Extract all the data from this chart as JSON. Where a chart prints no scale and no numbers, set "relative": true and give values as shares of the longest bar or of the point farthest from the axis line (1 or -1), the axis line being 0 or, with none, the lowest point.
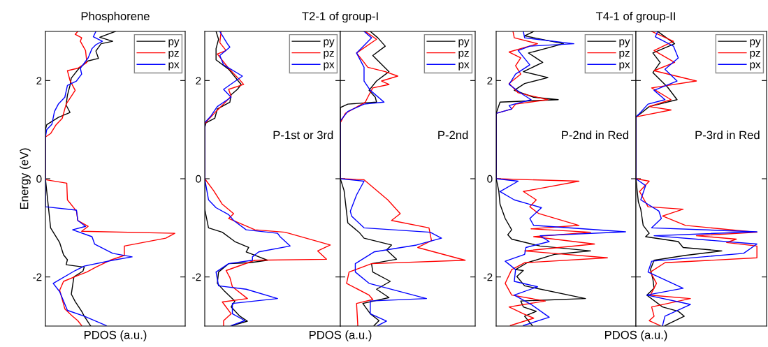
{
  "chart_data": [
    {
      "type": "line",
      "orientation": "horizontal",
      "relative": true,
      "title": "Phosphorene",
      "xlabel": "PDOS (a.u.)",
      "ylabel": "Energy (eV)",
      "ylim": [
        -3,
        3
      ],
      "yticks": [
        -2,
        0,
        2
      ],
      "tick_labels": "y",
      "legend": "top right",
      "series": [
        {
          "name": "py",
          "color": "#000000",
          "x": [
            3.0,
            2.88,
            2.8,
            2.75,
            2.6,
            2.45,
            2.4,
            2.25,
            2.05,
            1.9,
            1.7,
            1.5,
            1.35,
            1.25,
            1.1,
            1.0,
            0,
            -0.5,
            -1.0,
            -1.3,
            -1.55,
            -1.65,
            -1.75,
            -1.8,
            -1.88,
            -2.0,
            -2.35,
            -2.5,
            -2.7,
            -2.8,
            -3.0
          ],
          "values": [
            0.54,
            0.42,
            0.52,
            0.43,
            0.39,
            0.41,
            0.33,
            0.26,
            0.2,
            0.19,
            0.17,
            0.16,
            0.19,
            0.1,
            0.01,
            0,
            0,
            0.02,
            0.04,
            0.11,
            0.14,
            0.17,
            0.16,
            0.3,
            0.29,
            0.22,
            0.2,
            0.23,
            0.28,
            0.3,
            0.35
          ]
        },
        {
          "name": "pz",
          "color": "#ff0000",
          "x": [
            3.0,
            2.94,
            2.87,
            2.8,
            2.61,
            2.37,
            2.25,
            2.2,
            2.0,
            1.8,
            1.52,
            1.23,
            1.09,
            0.92,
            0.85,
            0,
            -0.02,
            -0.09,
            -0.43,
            -0.66,
            -0.85,
            -0.97,
            -1.07,
            -1.11,
            -1.21,
            -1.37,
            -1.56,
            -1.66,
            -1.8,
            -1.9,
            -1.97,
            -2.09,
            -2.27,
            -2.65,
            -2.8,
            -2.89,
            -2.99
          ],
          "values": [
            0.25,
            0.23,
            0.28,
            0.27,
            0.31,
            0.32,
            0.25,
            0.17,
            0.19,
            0.23,
            0.16,
            0.13,
            0.08,
            0.04,
            0,
            0,
            0,
            0.165,
            0.17,
            0.24,
            0.25,
            0.33,
            0.28,
            1.0,
            0.93,
            0.61,
            0.61,
            0.5,
            0.39,
            0.32,
            0.25,
            0.14,
            0.11,
            0.15,
            0.21,
            0.25,
            0.28
          ]
        },
        {
          "name": "px",
          "color": "#0000ff",
          "x": [
            3.0,
            2.89,
            2.8,
            2.73,
            2.65,
            2.46,
            2.25,
            2.13,
            1.99,
            1.9,
            1.66,
            1.52,
            1.37,
            1.11,
            1.0,
            0.85,
            0,
            -0.57,
            -0.64,
            -0.85,
            -0.97,
            -1.04,
            -1.18,
            -1.33,
            -1.52,
            -1.59,
            -1.66,
            -1.78,
            -1.87,
            -2.13,
            -2.3,
            -2.68,
            -2.8,
            -2.99
          ],
          "values": [
            0.39,
            0.37,
            0.44,
            0.39,
            0.36,
            0.33,
            0.27,
            0.28,
            0.24,
            0.17,
            0.15,
            0.1,
            0.07,
            0.05,
            0.01,
            0,
            0,
            0,
            0.24,
            0.25,
            0.31,
            0.21,
            0.36,
            0.38,
            0.52,
            0.67,
            0.52,
            0.3,
            0.23,
            0.06,
            0.11,
            0.17,
            0.3,
            0.47
          ]
        }
      ]
    },
    {
      "type": "line",
      "orientation": "horizontal",
      "relative": true,
      "title": "T2-1 of group-I",
      "xlabel": "PDOS (a.u.)",
      "ylim": [
        -3,
        3
      ],
      "yticks": [
        -2,
        0,
        2
      ],
      "tick_labels": "y",
      "legend": "top right",
      "annotations": [
        "P-1st or 3rd"
      ],
      "series": [
        {
          "name": "py",
          "color": "#000000",
          "x": [
            3.0,
            2.84,
            2.65,
            2.42,
            2.23,
            1.92,
            1.82,
            1.71,
            1.56,
            1.42,
            1.23,
            1.14,
            1.04,
            0,
            -0.62,
            -1.0,
            -1.09,
            -1.28,
            -1.4,
            -1.49,
            -1.56,
            -1.66,
            -1.71,
            -1.73,
            -1.9,
            -2.13,
            -2.27,
            -2.49,
            -2.61,
            -2.8,
            -2.9,
            -2.99
          ],
          "values": [
            0.09,
            0.11,
            0.09,
            0.09,
            0.19,
            0.29,
            0.26,
            0.21,
            0.2,
            0.1,
            0.08,
            0.01,
            0,
            0,
            0,
            0.03,
            0.14,
            0.24,
            0.35,
            0.33,
            0.4,
            0.5,
            0.36,
            0.19,
            0.11,
            0.1,
            0.15,
            0.24,
            0.21,
            0.28,
            0.34,
            0.22
          ]
        },
        {
          "name": "pz",
          "color": "#ff0000",
          "x": [
            3.0,
            2.77,
            2.61,
            2.54,
            2.25,
            2.01,
            1.92,
            1.82,
            1.68,
            1.52,
            1.37,
            1.18,
            1.11,
            0,
            -0.24,
            -0.52,
            -0.71,
            -0.81,
            -1.04,
            -1.09,
            -1.35,
            -1.47,
            -1.64,
            -1.66,
            -1.87,
            -2.01,
            -2.2,
            -2.44,
            -2.51,
            -2.75,
            -2.89,
            -2.99
          ],
          "values": [
            0.13,
            0.12,
            0.17,
            0.1,
            0.19,
            0.28,
            0.31,
            0.19,
            0.21,
            0.15,
            0.09,
            0.02,
            0,
            0,
            0.07,
            0.14,
            0.23,
            0.19,
            0.4,
            0.64,
            1.0,
            0.9,
            0.97,
            0.4,
            0.17,
            0.2,
            0.22,
            0.34,
            0.14,
            0.21,
            0.15,
            0.15
          ]
        },
        {
          "name": "px",
          "color": "#0000ff",
          "x": [
            3.0,
            2.75,
            2.68,
            2.51,
            2.32,
            2.09,
            1.82,
            1.66,
            1.47,
            1.28,
            1.14,
            0,
            -0.43,
            -0.59,
            -0.73,
            -0.85,
            -1.04,
            -1.11,
            -1.18,
            -1.37,
            -1.49,
            -1.59,
            -1.66,
            -1.73,
            -1.9,
            -2.18,
            -2.25,
            -2.44,
            -2.54,
            -2.75,
            -2.89,
            -2.99
          ],
          "values": [
            0.12,
            0.18,
            0.2,
            0.12,
            0.15,
            0.3,
            0.15,
            0.21,
            0.1,
            0.05,
            0,
            0,
            0.03,
            0.09,
            0.19,
            0.23,
            0.33,
            0.58,
            0.6,
            0.68,
            0.43,
            0.38,
            0.38,
            0.19,
            0.09,
            0.11,
            0.33,
            0.58,
            0.22,
            0.22,
            0.32,
            0.21
          ]
        }
      ]
    },
    {
      "type": "line",
      "orientation": "horizontal",
      "relative": true,
      "ylim": [
        -3,
        3
      ],
      "yticks": [
        -2,
        0,
        2
      ],
      "tick_labels": false,
      "legend": "top right",
      "annotations": [
        "P-2nd"
      ],
      "series": [
        {
          "name": "py",
          "color": "#000000",
          "x": [
            3.0,
            2.87,
            2.7,
            2.51,
            2.18,
            1.99,
            1.8,
            1.66,
            1.56,
            1.52,
            1.45,
            0,
            -0.24,
            -0.9,
            -1.09,
            -1.21,
            -1.35,
            -1.45,
            -1.64,
            -1.73,
            -1.9,
            -2.09,
            -2.25,
            -2.42,
            -2.54,
            -2.75,
            -2.89,
            -2.99
          ],
          "values": [
            0.24,
            0.3,
            0.36,
            0.26,
            0.39,
            0.29,
            0.23,
            0.28,
            0.29,
            0.06,
            0,
            0,
            0.03,
            0.06,
            0.15,
            0.19,
            0.41,
            0.37,
            0.45,
            0.25,
            0.26,
            0.4,
            0.29,
            0.39,
            0.18,
            0.24,
            0.31,
            0.27
          ]
        },
        {
          "name": "pz",
          "color": "#ff0000",
          "x": [
            3.0,
            2.84,
            2.56,
            2.37,
            2.27,
            2.18,
            2.09,
            1.99,
            1.92,
            1.85,
            1.71,
            1.56,
            1.33,
            1.14,
            0,
            -0.02,
            -0.43,
            -0.71,
            -0.85,
            -1.0,
            -1.26,
            -1.4,
            -1.66,
            -1.73,
            -1.9,
            -2.13,
            -2.37,
            -2.46,
            -2.54,
            -2.99
          ],
          "values": [
            0.2,
            0.29,
            0.13,
            0.19,
            0.22,
            0.36,
            0.46,
            0.33,
            0.39,
            0.26,
            0.23,
            0.2,
            0.04,
            0,
            0,
            0.19,
            0.38,
            0.48,
            0.41,
            0.71,
            0.73,
            0.62,
            1.0,
            0.25,
            0.07,
            0.05,
            0.23,
            0.26,
            0.13,
            0.14
          ]
        },
        {
          "name": "px",
          "color": "#0000ff",
          "x": [
            3.0,
            2.87,
            2.56,
            2.27,
            1.99,
            1.8,
            1.56,
            1.52,
            1.37,
            1.18,
            0,
            -0.05,
            -0.33,
            -0.66,
            -0.76,
            -1.0,
            -1.09,
            -1.21,
            -1.35,
            -1.49,
            -1.73,
            -1.9,
            -2.13,
            -2.44,
            -2.49,
            -2.75,
            -2.9,
            -2.99
          ],
          "values": [
            0.19,
            0.25,
            0.13,
            0.19,
            0.19,
            0.24,
            0.35,
            0.19,
            0.06,
            0,
            0,
            0.19,
            0.13,
            0.08,
            0.09,
            0.19,
            0.72,
            0.81,
            0.61,
            0.27,
            0.12,
            0.12,
            0.23,
            0.69,
            0.24,
            0.24,
            0.37,
            0.3
          ]
        }
      ]
    },
    {
      "type": "line",
      "orientation": "horizontal",
      "relative": true,
      "title": "T4-1 of group-II",
      "xlabel": "PDOS (a.u.)",
      "ylim": [
        -3,
        3
      ],
      "yticks": [
        -2,
        0,
        2
      ],
      "tick_labels": "y",
      "legend": "top right",
      "annotations": [
        "P-2nd in Red"
      ],
      "series": [
        {
          "name": "py",
          "color": "#000000",
          "x": [
            3.0,
            2.91,
            2.75,
            2.56,
            2.37,
            2.18,
            2.06,
            1.94,
            1.8,
            1.66,
            1.61,
            1.56,
            1.33,
            0,
            -0.24,
            -0.52,
            -0.81,
            -1.04,
            -1.14,
            -1.23,
            -1.37,
            -1.47,
            -1.54,
            -1.71,
            -1.85,
            -1.87,
            -1.99,
            -2.18,
            -2.44,
            -2.49,
            -2.61,
            -2.7,
            -2.8,
            -2.99
          ],
          "values": [
            0.29,
            0.22,
            0.52,
            0.25,
            0.36,
            0.21,
            0.4,
            0.22,
            0.14,
            0.29,
            0.48,
            0.03,
            0,
            0,
            0.02,
            0.03,
            0.07,
            0.12,
            0.09,
            0.12,
            0.34,
            0.73,
            0.45,
            0.24,
            0.15,
            0.21,
            0.16,
            0.22,
            0.69,
            0.19,
            0.21,
            0.31,
            0.22,
            0.28
          ]
        },
        {
          "name": "pz",
          "color": "#ff0000",
          "x": [
            3.0,
            2.87,
            2.75,
            2.58,
            2.46,
            2.3,
            2.13,
            1.94,
            1.75,
            1.61,
            1.52,
            1.42,
            1.33,
            0,
            -0.05,
            -0.26,
            -0.43,
            -0.57,
            -0.71,
            -0.95,
            -1.02,
            -1.09,
            -1.18,
            -1.33,
            -1.47,
            -1.61,
            -1.71,
            -1.85,
            -2.13,
            -2.37,
            -2.49,
            -2.61,
            -2.75,
            -2.84,
            -2.99
          ],
          "values": [
            0.13,
            0.14,
            0.32,
            0.1,
            0.19,
            0.15,
            0.19,
            0.1,
            0.17,
            0.4,
            0.15,
            0.12,
            0,
            0,
            0.64,
            0.21,
            0.31,
            0.26,
            0.33,
            0.64,
            0.27,
            0.73,
            0.29,
            0.76,
            0.22,
            0.86,
            0.22,
            0.12,
            0.07,
            0.12,
            0.38,
            0.1,
            0.21,
            0.29,
            0.11
          ]
        },
        {
          "name": "px",
          "color": "#0000ff",
          "x": [
            3.0,
            2.87,
            2.75,
            2.7,
            2.61,
            2.32,
            2.13,
            1.92,
            1.71,
            1.61,
            1.49,
            1.42,
            1.33,
            0,
            -0.05,
            -0.26,
            -0.43,
            -0.59,
            -0.81,
            -0.95,
            -1.08,
            -1.16,
            -1.28,
            -1.4,
            -1.54,
            -1.68,
            -1.85,
            -2.09,
            -2.2,
            -2.37,
            -2.56,
            -2.82,
            -2.99
          ],
          "values": [
            0.21,
            0.22,
            0.6,
            0.26,
            0.17,
            0.26,
            0.15,
            0.1,
            0.21,
            0.27,
            0.1,
            0.12,
            0,
            0,
            0.17,
            0.03,
            0.14,
            0.35,
            0.26,
            0.29,
            1.0,
            0.34,
            0.41,
            0.23,
            0.22,
            0.07,
            0.15,
            0.14,
            0.32,
            0.14,
            0.27,
            0.41,
            0.21
          ]
        }
      ]
    },
    {
      "type": "line",
      "orientation": "horizontal",
      "relative": true,
      "ylim": [
        -3,
        3
      ],
      "yticks": [
        -2,
        0,
        2
      ],
      "tick_labels": false,
      "legend": "top right",
      "annotations": [
        "P-3rd in Red"
      ],
      "series": [
        {
          "name": "py",
          "color": "#000000",
          "x": [
            3.0,
            2.75,
            2.56,
            2.37,
            2.16,
            1.87,
            1.61,
            1.47,
            1.33,
            1.26,
            0,
            -0.47,
            -0.62,
            -0.95,
            -1.11,
            -1.18,
            -1.28,
            -1.4,
            -1.47,
            -1.56,
            -1.66,
            -1.85,
            -2.04,
            -2.23,
            -2.37,
            -2.61,
            -2.7,
            -2.8,
            -2.99
          ],
          "values": [
            0.18,
            0.32,
            0.14,
            0.2,
            0.14,
            0.26,
            0.34,
            0.11,
            0.04,
            0,
            0,
            0.02,
            0.04,
            0.06,
            0.11,
            0.08,
            0.35,
            0.39,
            0.71,
            0.41,
            0.15,
            0.12,
            0.14,
            0.15,
            0.09,
            0.22,
            0.35,
            0.4,
            0.24
          ]
        },
        {
          "name": "pz",
          "color": "#ff0000",
          "x": [
            3.0,
            2.8,
            2.61,
            2.37,
            2.2,
            1.99,
            1.85,
            1.61,
            1.47,
            1.4,
            1.26,
            0,
            -0.05,
            -0.26,
            -0.57,
            -0.62,
            -0.76,
            -0.95,
            -1.09,
            -1.16,
            -1.23,
            -1.3,
            -1.37,
            -1.61,
            -1.71,
            -1.9,
            -2.13,
            -2.37,
            -2.44,
            -2.61,
            -2.8,
            -2.89,
            -2.99
          ],
          "values": [
            0.13,
            0.31,
            0.15,
            0.32,
            0.15,
            0.5,
            0.13,
            0.29,
            0.11,
            0.29,
            0,
            0,
            0.11,
            0.03,
            0.1,
            0.39,
            0.22,
            0.41,
            1.0,
            0.5,
            0.83,
            0.75,
            1.0,
            1.0,
            0.24,
            0.12,
            0.17,
            0.12,
            0.45,
            0.13,
            0.15,
            0.11,
            0.2
          ]
        },
        {
          "name": "px",
          "color": "#0000ff",
          "x": [
            3.0,
            2.89,
            2.7,
            2.46,
            2.23,
            1.99,
            1.8,
            1.61,
            1.52,
            1.33,
            1.26,
            0,
            -0.14,
            -0.43,
            -0.66,
            -0.81,
            -1.0,
            -1.08,
            -1.16,
            -1.33,
            -1.52,
            -1.68,
            -1.9,
            -2.23,
            -2.37,
            -2.56,
            -2.8,
            -2.99
          ],
          "values": [
            0.18,
            0.16,
            0.31,
            0.35,
            0.24,
            0.34,
            0.15,
            0.24,
            0.1,
            0.03,
            0,
            0,
            0.08,
            0.04,
            0.19,
            0.21,
            0.13,
            1.0,
            0.15,
            1.0,
            0.89,
            0.13,
            0.1,
            0.39,
            0.09,
            0.45,
            0.24,
            0.22
          ]
        }
      ]
    }
  ]
}
